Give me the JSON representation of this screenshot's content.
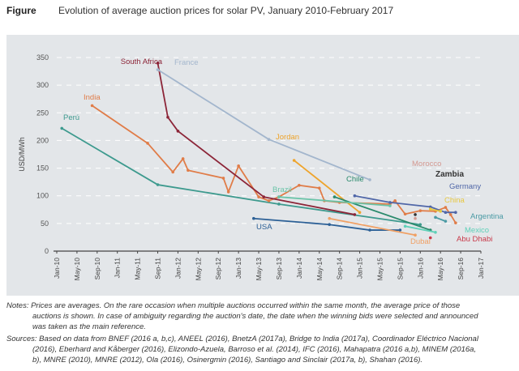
{
  "figure_label": "Figure",
  "chart_data": {
    "type": "line",
    "title": "Evolution of average auction prices for solar PV, January 2010-February 2017",
    "ylabel": "USD/MWh",
    "xlabel": "",
    "ylim": [
      0,
      350
    ],
    "yticks": [
      0,
      50,
      100,
      150,
      200,
      250,
      300,
      350
    ],
    "xlim": [
      "2010-01",
      "2017-01"
    ],
    "xtick_labels": [
      "Jan-10",
      "May-10",
      "Sep-10",
      "Jan-11",
      "May-11",
      "Sep-11",
      "Jan-12",
      "May-12",
      "Sep-12",
      "Jan-13",
      "May-13",
      "Sep-13",
      "Jan-14",
      "May-14",
      "Sep-14",
      "Jan-15",
      "May-15",
      "Sep-15",
      "Jan-16",
      "May-16",
      "Sep-16",
      "Jan-17"
    ],
    "grid": "horizontal dashed",
    "series": [
      {
        "name": "Perú",
        "color": "#3d9a8e",
        "points": [
          [
            "2010-02",
            222
          ],
          [
            "2011-09",
            120
          ],
          [
            "2013-09",
            85
          ],
          [
            "2016-01",
            48
          ]
        ]
      },
      {
        "name": "India",
        "color": "#e07c48",
        "points": [
          [
            "2010-08",
            263
          ],
          [
            "2011-07",
            195
          ],
          [
            "2011-12",
            143
          ],
          [
            "2012-02",
            167
          ],
          [
            "2012-03",
            146
          ],
          [
            "2012-10",
            132
          ],
          [
            "2012-11",
            107
          ],
          [
            "2013-01",
            154
          ],
          [
            "2013-05",
            98
          ],
          [
            "2013-07",
            91
          ],
          [
            "2013-09",
            98
          ],
          [
            "2014-01",
            119
          ],
          [
            "2014-05",
            114
          ],
          [
            "2014-06",
            91
          ],
          [
            "2014-09",
            88
          ],
          [
            "2015-07",
            85
          ],
          [
            "2015-08",
            91
          ],
          [
            "2015-10",
            67
          ],
          [
            "2016-01",
            73
          ],
          [
            "2016-04",
            72
          ],
          [
            "2016-06",
            79
          ],
          [
            "2016-07",
            66
          ],
          [
            "2016-08",
            51
          ]
        ]
      },
      {
        "name": "South Africa",
        "color": "#8c2538",
        "points": [
          [
            "2011-09",
            340
          ],
          [
            "2011-11",
            242
          ],
          [
            "2012-01",
            217
          ],
          [
            "2013-06",
            98
          ],
          [
            "2014-12",
            66
          ]
        ]
      },
      {
        "name": "France",
        "color": "#a3b6cd",
        "points": [
          [
            "2011-09",
            328
          ],
          [
            "2013-07",
            202
          ],
          [
            "2015-03",
            129
          ]
        ]
      },
      {
        "name": "Jordan",
        "color": "#eea42c",
        "points": [
          [
            "2013-12",
            164
          ],
          [
            "2015-01",
            70
          ]
        ]
      },
      {
        "name": "Chile",
        "color": "#2a8a6c",
        "points": [
          [
            "2014-08",
            98
          ],
          [
            "2016-03",
            38
          ]
        ]
      },
      {
        "name": "Brazil",
        "color": "#6ac4a8",
        "points": [
          [
            "2013-09",
            98
          ],
          [
            "2015-07",
            82
          ]
        ]
      },
      {
        "name": "USA",
        "color": "#2c6096",
        "points": [
          [
            "2013-04",
            59
          ],
          [
            "2014-07",
            48
          ],
          [
            "2015-03",
            38
          ],
          [
            "2015-09",
            38
          ]
        ]
      },
      {
        "name": "Dubai",
        "color": "#f0a064",
        "points": [
          [
            "2014-07",
            59
          ],
          [
            "2015-12",
            29
          ]
        ]
      },
      {
        "name": "Germany",
        "color": "#5067a8",
        "points": [
          [
            "2014-12",
            100
          ],
          [
            "2015-07",
            88
          ],
          [
            "2016-03",
            80
          ],
          [
            "2016-06",
            70
          ],
          [
            "2016-08",
            70
          ]
        ]
      },
      {
        "name": "Mexico",
        "color": "#5fd0b8",
        "points": [
          [
            "2015-10",
            45
          ],
          [
            "2016-04",
            34
          ]
        ]
      },
      {
        "name": "Argentina",
        "color": "#4a9aa4",
        "points": [
          [
            "2016-04",
            61
          ],
          [
            "2016-06",
            54
          ]
        ]
      },
      {
        "name": "China",
        "color": "#e8c840",
        "points": [
          [
            "2016-03",
            76
          ],
          [
            "2016-05",
            72
          ]
        ]
      },
      {
        "name": "Morocco",
        "color": "#d49a92",
        "points": [
          [
            "2015-12",
            59
          ]
        ]
      },
      {
        "name": "Zambia",
        "color": "#333333",
        "points": [
          [
            "2015-12",
            66
          ]
        ]
      },
      {
        "name": "Abu Dhabi",
        "color": "#c83a4a",
        "points": [
          [
            "2016-03",
            24
          ]
        ]
      }
    ]
  },
  "notes": {
    "notes_line1": "Notes: Prices are averages. On the rare occasion when multiple auctions occurred within the same month, the average price of those",
    "notes_line2": "auctions is shown. In case of ambiguity regarding the auction's date, the date when the winning bids were selected and announced",
    "notes_line3": "was taken as the main reference.",
    "sources_line1": "Sources: Based on data from BNEF (2016 a, b,c), ANEEL (2016), BnetzA (2017a), Bridge to India (2017a), Coordinador Eléctrico Nacional",
    "sources_line2": "(2016), Eberhard and Kåberger (2016), Elizondo-Azuela, Barroso et al. (2014), IFC (2016), Mahapatra (2016 a,b), MINEM (2016a,",
    "sources_line3": "b), MNRE (2010), MNRE (2012), Ola (2016), Osinergmin (2016), Santiago and Sinclair (2017a, b), Shahan (2016)."
  }
}
